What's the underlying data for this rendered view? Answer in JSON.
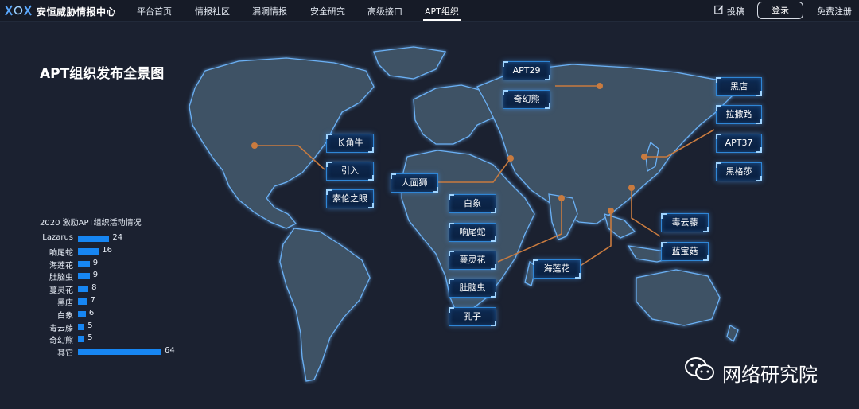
{
  "header": {
    "brand": "安恒威胁情报中心",
    "nav": [
      "平台首页",
      "情报社区",
      "漏洞情报",
      "安全研究",
      "高级接口",
      "APT组织"
    ],
    "active_nav": "APT组织",
    "contribute": "投稿",
    "login": "登录",
    "register": "免费注册"
  },
  "page": {
    "title": "APT组织发布全景图"
  },
  "apt_labels": [
    "APT29",
    "奇幻熊",
    "黑店",
    "拉撒路",
    "APT37",
    "黑格莎",
    "长角牛",
    "引入",
    "索伦之眼",
    "人面狮",
    "白象",
    "响尾蛇",
    "蔓灵花",
    "肚脑虫",
    "孔子",
    "海莲花",
    "毒云藤",
    "蓝宝菇"
  ],
  "stats": {
    "title": "2020 激励APT组织活动情况",
    "rows": [
      {
        "name": "Lazarus",
        "value": 24
      },
      {
        "name": "响尾蛇",
        "value": 16
      },
      {
        "name": "海莲花",
        "value": 9
      },
      {
        "name": "肚脑虫",
        "value": 9
      },
      {
        "name": "蔓灵花",
        "value": 8
      },
      {
        "name": "黑店",
        "value": 7
      },
      {
        "name": "白象",
        "value": 6
      },
      {
        "name": "毒云藤",
        "value": 5
      },
      {
        "name": "奇幻熊",
        "value": 5
      },
      {
        "name": "其它",
        "value": 64
      }
    ]
  },
  "watermark": "网络研究院",
  "colors": {
    "accent": "#1786f2",
    "connector": "#c97b3f",
    "label_border": "#2f86d6"
  }
}
